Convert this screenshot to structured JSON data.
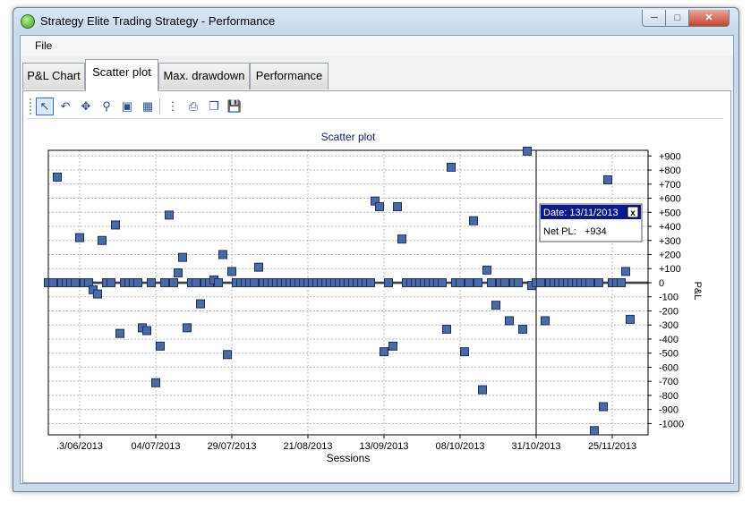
{
  "window": {
    "title": "Strategy Elite Trading Strategy - Performance",
    "min_glyph": "─",
    "max_glyph": "□",
    "close_glyph": "✕"
  },
  "menu": {
    "file": "File"
  },
  "tabs": [
    {
      "label": "P&L Chart"
    },
    {
      "label": "Scatter plot"
    },
    {
      "label": "Max. drawdown"
    },
    {
      "label": "Performance"
    }
  ],
  "toolbar": {
    "icons": [
      "pointer-icon",
      "undo-zoom-icon",
      "pan-icon",
      "zoom-icon",
      "export-image-icon",
      "export-data-icon",
      "properties-icon",
      "print-icon",
      "copy-icon",
      "save-icon"
    ],
    "glyphs": [
      "↖",
      "↶",
      "✥",
      "⚲",
      "▣",
      "▦",
      "⋮",
      "⎙",
      "❐",
      "💾"
    ]
  },
  "tooltip": {
    "date": "Date: 13/11/2013",
    "netpl_label": "Net PL:",
    "netpl_value": "+934",
    "close": "x"
  },
  "colors": {
    "marker": "#4a6aa5",
    "marker_stroke": "#1e3060",
    "zero_line": "#7f7f7f",
    "tooltip_header": "#0a1a8c"
  },
  "chart_data": {
    "type": "scatter",
    "title": "Scatter plot",
    "xlabel": "Sessions",
    "ylabel": "P&L",
    "xlim": [
      0,
      134
    ],
    "ylim": [
      -1080,
      940
    ],
    "x_ticks": [
      {
        "x": 7,
        "label": ".3/06/2013"
      },
      {
        "x": 24,
        "label": "04/07/2013"
      },
      {
        "x": 41,
        "label": "29/07/2013"
      },
      {
        "x": 58,
        "label": "21/08/2013"
      },
      {
        "x": 75,
        "label": "13/09/2013"
      },
      {
        "x": 92,
        "label": "08/10/2013"
      },
      {
        "x": 109,
        "label": "31/10/2013"
      },
      {
        "x": 126,
        "label": "25/11/2013"
      }
    ],
    "y_ticks": [
      900,
      800,
      700,
      600,
      500,
      400,
      300,
      200,
      100,
      0,
      -100,
      -200,
      -300,
      -400,
      -500,
      -600,
      -700,
      -800,
      -900,
      -1000
    ],
    "y_tick_labels": [
      "+900",
      "+800",
      "+700",
      "+600",
      "+500",
      "+400",
      "+300",
      "+200",
      "+100",
      "0",
      "-100",
      "-200",
      "-300",
      "-400",
      "-500",
      "-600",
      "-700",
      "-800",
      "-900",
      "-1000"
    ],
    "grid": true,
    "crosshair_x": 109,
    "values": [
      0,
      0,
      750,
      0,
      0,
      0,
      0,
      320,
      0,
      0,
      -50,
      -80,
      300,
      0,
      0,
      410,
      -360,
      0,
      0,
      0,
      0,
      -320,
      -340,
      0,
      -710,
      -450,
      0,
      480,
      0,
      70,
      180,
      -320,
      0,
      0,
      -150,
      0,
      0,
      20,
      0,
      200,
      -510,
      80,
      0,
      0,
      0,
      0,
      0,
      110,
      0,
      0,
      0,
      0,
      0,
      0,
      0,
      0,
      0,
      0,
      0,
      0,
      0,
      0,
      0,
      0,
      0,
      0,
      0,
      0,
      0,
      0,
      0,
      0,
      0,
      580,
      540,
      -490,
      0,
      -450,
      540,
      310,
      0,
      0,
      0,
      0,
      0,
      0,
      0,
      0,
      0,
      -330,
      820,
      0,
      0,
      -490,
      0,
      440,
      0,
      -760,
      90,
      0,
      -160,
      0,
      0,
      -270,
      0,
      0,
      -330,
      934,
      -20,
      0,
      0,
      -270,
      0,
      0,
      0,
      0,
      0,
      0,
      0,
      0,
      0,
      0,
      -1050,
      0,
      -880,
      730,
      0,
      0,
      0,
      80,
      -260
    ]
  }
}
